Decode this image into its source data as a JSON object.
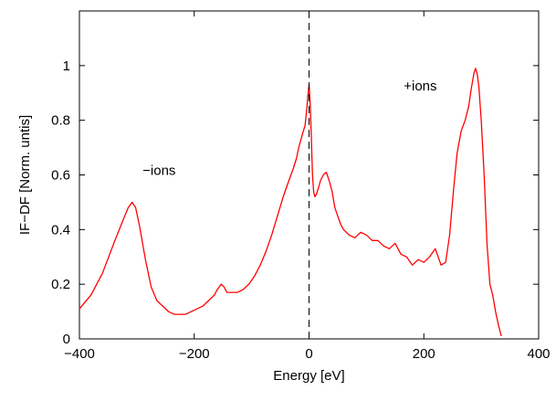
{
  "chart_data": {
    "type": "line",
    "xlabel": "Energy [eV]",
    "ylabel": "IF−DF [Norm. untis]",
    "xlim": [
      -400,
      400
    ],
    "ylim": [
      0,
      1.2
    ],
    "xticks": [
      -400,
      -200,
      0,
      200,
      400
    ],
    "xtick_labels": [
      "−400",
      "−200",
      "0",
      "200",
      "400"
    ],
    "yticks": [
      0,
      0.2,
      0.4,
      0.6,
      0.8,
      1
    ],
    "ytick_labels": [
      "0",
      "0.2",
      "0.4",
      "0.6",
      "0.8",
      "1"
    ],
    "grid": false,
    "annotations": [
      {
        "text": "−ions",
        "x": -290,
        "y": 0.6
      },
      {
        "text": "+ions",
        "x": 165,
        "y": 0.91
      }
    ],
    "vline": {
      "x": 0,
      "style": "dashed",
      "color": "#000000"
    },
    "series": [
      {
        "color": "#ff0000",
        "x": [
          -400,
          -380,
          -360,
          -340,
          -325,
          -315,
          -308,
          -302,
          -295,
          -285,
          -275,
          -265,
          -255,
          -245,
          -235,
          -225,
          -215,
          -205,
          -195,
          -185,
          -175,
          -165,
          -160,
          -153,
          -148,
          -143,
          -135,
          -125,
          -115,
          -105,
          -95,
          -85,
          -75,
          -65,
          -55,
          -45,
          -35,
          -28,
          -22,
          -18,
          -14,
          -10,
          -7,
          -4,
          -2,
          0,
          2,
          4,
          6,
          8,
          10,
          13,
          16,
          20,
          25,
          30,
          35,
          40,
          45,
          50,
          55,
          60,
          65,
          70,
          80,
          90,
          100,
          110,
          120,
          130,
          140,
          150,
          160,
          170,
          180,
          190,
          200,
          210,
          220,
          230,
          238,
          245,
          252,
          258,
          265,
          272,
          278,
          283,
          287,
          290,
          293,
          296,
          300,
          305,
          310,
          315,
          320,
          325,
          330,
          335
        ],
        "y": [
          0.11,
          0.16,
          0.24,
          0.35,
          0.43,
          0.48,
          0.5,
          0.48,
          0.41,
          0.29,
          0.19,
          0.14,
          0.12,
          0.1,
          0.09,
          0.09,
          0.09,
          0.1,
          0.11,
          0.12,
          0.14,
          0.16,
          0.18,
          0.2,
          0.19,
          0.17,
          0.17,
          0.17,
          0.18,
          0.2,
          0.23,
          0.27,
          0.32,
          0.38,
          0.45,
          0.52,
          0.58,
          0.62,
          0.66,
          0.7,
          0.73,
          0.76,
          0.78,
          0.84,
          0.89,
          0.93,
          0.86,
          0.74,
          0.6,
          0.54,
          0.52,
          0.53,
          0.55,
          0.58,
          0.6,
          0.61,
          0.58,
          0.54,
          0.48,
          0.45,
          0.42,
          0.4,
          0.39,
          0.38,
          0.37,
          0.39,
          0.38,
          0.36,
          0.36,
          0.34,
          0.33,
          0.35,
          0.31,
          0.3,
          0.27,
          0.29,
          0.28,
          0.3,
          0.33,
          0.27,
          0.28,
          0.38,
          0.55,
          0.68,
          0.76,
          0.8,
          0.85,
          0.92,
          0.97,
          0.99,
          0.97,
          0.92,
          0.8,
          0.6,
          0.35,
          0.2,
          0.16,
          0.1,
          0.05,
          0.01
        ]
      }
    ]
  }
}
